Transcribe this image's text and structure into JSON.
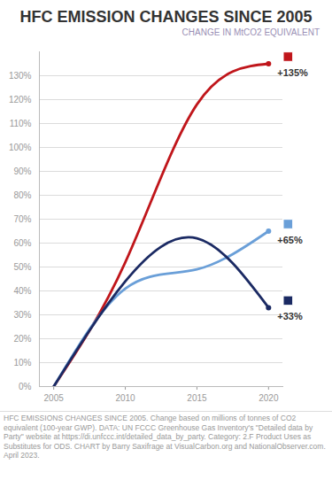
{
  "chart_data": {
    "type": "line",
    "title": "HFC EMISSION CHANGES SINCE 2005",
    "subtitle": "CHANGE IN MtCO2 EQUIVALENT",
    "caption": "HFC EMISSIONS CHANGES SINCE 2005. Change based on millions of tonnes of CO2 equivalent (100-year GWP). DATA: UN FCCC Greenhouse Gas Inventory's \"Detailed data by Party\" website at https://di.unfccc.int/detailed_data_by_party. Category: 2.F Product Uses as Substitutes for ODS. CHART by Barry Saxifrage at VisualCarbon.org and NationalObserver.com. April 2023.",
    "x": [
      2005,
      2010,
      2015,
      2020
    ],
    "series": [
      {
        "color": "#c0161b",
        "values": [
          0,
          52,
          118,
          135
        ],
        "value_labels": [
          null,
          null,
          null,
          "+135%"
        ]
      },
      {
        "color": "#6a9fd8",
        "values": [
          0,
          41,
          49,
          65
        ],
        "value_labels": [
          null,
          null,
          null,
          "+65%"
        ]
      },
      {
        "color": "#1b2a63",
        "values": [
          0,
          44,
          62,
          33
        ],
        "value_labels": [
          null,
          null,
          null,
          "+33%"
        ]
      }
    ],
    "xlim": [
      2004,
      2021
    ],
    "xticks": [
      2005,
      2010,
      2015,
      2020
    ],
    "ylim": [
      0,
      140
    ],
    "yticks": [
      {
        "value": 0,
        "label": "0%"
      },
      {
        "value": 10,
        "label": "10%"
      },
      {
        "value": 20,
        "label": "20%"
      },
      {
        "value": 30,
        "label": "30%"
      },
      {
        "value": 40,
        "label": "40%"
      },
      {
        "value": 50,
        "label": "50%"
      },
      {
        "value": 60,
        "label": "60%"
      },
      {
        "value": 70,
        "label": "70%"
      },
      {
        "value": 80,
        "label": "80%"
      },
      {
        "value": 90,
        "label": "90%"
      },
      {
        "value": 100,
        "label": "100%"
      },
      {
        "value": 110,
        "label": "110%"
      },
      {
        "value": 120,
        "label": "120%"
      },
      {
        "value": 130,
        "label": "130%"
      }
    ],
    "grid": true,
    "data_labels": true
  }
}
